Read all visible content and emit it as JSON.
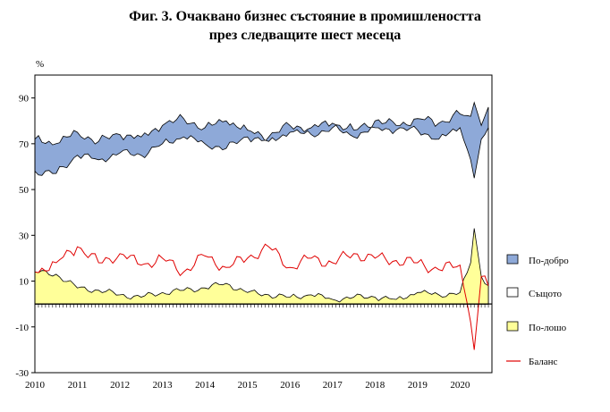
{
  "title": {
    "line1": "Фиг. 3. Очаквано бизнес състояние в промишлеността",
    "line2": "през следващите шест месеца"
  },
  "chart_data": {
    "type": "area",
    "title": "Фиг. 3. Очаквано бизнес състояние в промишлеността през следващите шест месеца",
    "ylabel": "%",
    "xlabel": "",
    "ylim": [
      -30,
      100
    ],
    "yticks": [
      -30,
      -10,
      10,
      30,
      50,
      70,
      90
    ],
    "year_ticks": [
      "2010",
      "2011",
      "2012",
      "2013",
      "2014",
      "2015",
      "2016",
      "2017",
      "2018",
      "2019",
      "2020"
    ],
    "x_start": "2010-01",
    "x_end": "2020-09",
    "legend_position": "right",
    "x": [
      "2010-01",
      "2010-07",
      "2011-01",
      "2011-07",
      "2012-01",
      "2012-07",
      "2013-01",
      "2013-07",
      "2014-01",
      "2014-07",
      "2015-01",
      "2015-07",
      "2016-01",
      "2016-07",
      "2017-01",
      "2017-07",
      "2018-01",
      "2018-07",
      "2019-01",
      "2019-07",
      "2020-01",
      "2020-04",
      "2020-05",
      "2020-07",
      "2020-09"
    ],
    "series": [
      {
        "name": "По-добро",
        "color": "#8ea9d8",
        "kind": "area",
        "values": [
          72,
          70,
          75,
          71,
          74,
          73,
          78,
          81,
          77,
          80,
          76,
          73,
          78,
          77,
          79,
          76,
          80,
          78,
          81,
          79,
          83,
          82,
          88,
          78,
          86
        ]
      },
      {
        "name": "Същото",
        "color": "#ffffff",
        "kind": "area",
        "values": [
          58,
          57,
          65,
          63,
          66,
          65,
          70,
          73,
          70,
          68,
          73,
          71,
          75,
          74,
          77,
          73,
          77,
          76,
          76,
          72,
          77,
          63,
          55,
          72,
          77
        ]
      },
      {
        "name": "По-лошо",
        "color": "#ffff99",
        "kind": "area",
        "values": [
          14,
          13,
          7,
          6,
          4,
          3,
          5,
          6,
          7,
          9,
          5,
          4,
          3,
          4,
          2,
          3,
          3,
          2,
          5,
          4,
          5,
          18,
          33,
          12,
          8
        ]
      },
      {
        "name": "Баланс",
        "color": "#e00000",
        "kind": "line",
        "values": [
          14,
          18,
          25,
          18,
          22,
          17,
          20,
          14,
          21,
          16,
          20,
          25,
          16,
          20,
          18,
          22,
          20,
          19,
          18,
          15,
          17,
          -8,
          -20,
          12,
          8
        ]
      }
    ]
  }
}
